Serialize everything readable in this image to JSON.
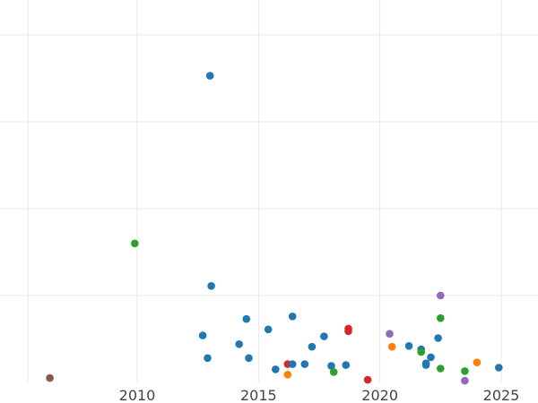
{
  "chart_data": {
    "type": "scatter",
    "title": "",
    "xlabel": "",
    "ylabel": "",
    "xlim": [
      2005,
      2026.5
    ],
    "ylim": [
      0,
      4.4
    ],
    "x_ticks": [
      {
        "value": 2010,
        "label": "2010"
      },
      {
        "value": 2015,
        "label": "2015"
      },
      {
        "value": 2020,
        "label": "2020"
      },
      {
        "value": 2025,
        "label": "2025"
      }
    ],
    "minor_x_gridlines": [
      2005.5
    ],
    "y_gridlines": [
      1,
      2,
      3,
      4
    ],
    "y_tick_labels_visible": false,
    "grid": true,
    "legend": "none",
    "colors": {
      "blue": "#1f77b4",
      "orange": "#ff7f0e",
      "green": "#2ca02c",
      "red": "#d62728",
      "purple": "#9467bd",
      "brown": "#8c564b",
      "grid": "#e9e9e9",
      "tick_text": "#444444"
    },
    "points": [
      {
        "x": 2006.4,
        "y": 0.05,
        "color": "brown"
      },
      {
        "x": 2009.9,
        "y": 1.6,
        "color": "green"
      },
      {
        "x": 2013.0,
        "y": 3.53,
        "color": "blue"
      },
      {
        "x": 2013.05,
        "y": 1.11,
        "color": "blue"
      },
      {
        "x": 2012.7,
        "y": 0.54,
        "color": "blue"
      },
      {
        "x": 2012.9,
        "y": 0.28,
        "color": "blue"
      },
      {
        "x": 2014.2,
        "y": 0.44,
        "color": "blue"
      },
      {
        "x": 2014.5,
        "y": 0.73,
        "color": "blue"
      },
      {
        "x": 2014.6,
        "y": 0.28,
        "color": "blue"
      },
      {
        "x": 2015.4,
        "y": 0.61,
        "color": "blue"
      },
      {
        "x": 2015.7,
        "y": 0.15,
        "color": "blue"
      },
      {
        "x": 2016.2,
        "y": 0.09,
        "color": "orange"
      },
      {
        "x": 2016.2,
        "y": 0.21,
        "color": "red"
      },
      {
        "x": 2016.4,
        "y": 0.21,
        "color": "blue"
      },
      {
        "x": 2016.4,
        "y": 0.76,
        "color": "blue"
      },
      {
        "x": 2016.9,
        "y": 0.21,
        "color": "blue"
      },
      {
        "x": 2017.2,
        "y": 0.41,
        "color": "blue"
      },
      {
        "x": 2017.7,
        "y": 0.53,
        "color": "blue"
      },
      {
        "x": 2018.0,
        "y": 0.19,
        "color": "blue"
      },
      {
        "x": 2018.1,
        "y": 0.12,
        "color": "green"
      },
      {
        "x": 2018.6,
        "y": 0.2,
        "color": "blue"
      },
      {
        "x": 2018.7,
        "y": 0.62,
        "color": "red"
      },
      {
        "x": 2018.7,
        "y": 0.59,
        "color": "red"
      },
      {
        "x": 2019.5,
        "y": 0.03,
        "color": "red"
      },
      {
        "x": 2020.4,
        "y": 0.56,
        "color": "purple"
      },
      {
        "x": 2020.5,
        "y": 0.41,
        "color": "orange"
      },
      {
        "x": 2021.2,
        "y": 0.42,
        "color": "blue"
      },
      {
        "x": 2021.7,
        "y": 0.38,
        "color": "blue"
      },
      {
        "x": 2021.7,
        "y": 0.35,
        "color": "green"
      },
      {
        "x": 2021.9,
        "y": 0.22,
        "color": "blue"
      },
      {
        "x": 2021.9,
        "y": 0.2,
        "color": "blue"
      },
      {
        "x": 2022.1,
        "y": 0.29,
        "color": "blue"
      },
      {
        "x": 2022.4,
        "y": 0.51,
        "color": "blue"
      },
      {
        "x": 2022.5,
        "y": 0.16,
        "color": "green"
      },
      {
        "x": 2022.5,
        "y": 0.74,
        "color": "green"
      },
      {
        "x": 2022.5,
        "y": 1.0,
        "color": "purple"
      },
      {
        "x": 2023.5,
        "y": 0.13,
        "color": "green"
      },
      {
        "x": 2023.5,
        "y": 0.02,
        "color": "purple"
      },
      {
        "x": 2024.0,
        "y": 0.23,
        "color": "orange"
      },
      {
        "x": 2024.9,
        "y": 0.17,
        "color": "blue"
      }
    ]
  }
}
